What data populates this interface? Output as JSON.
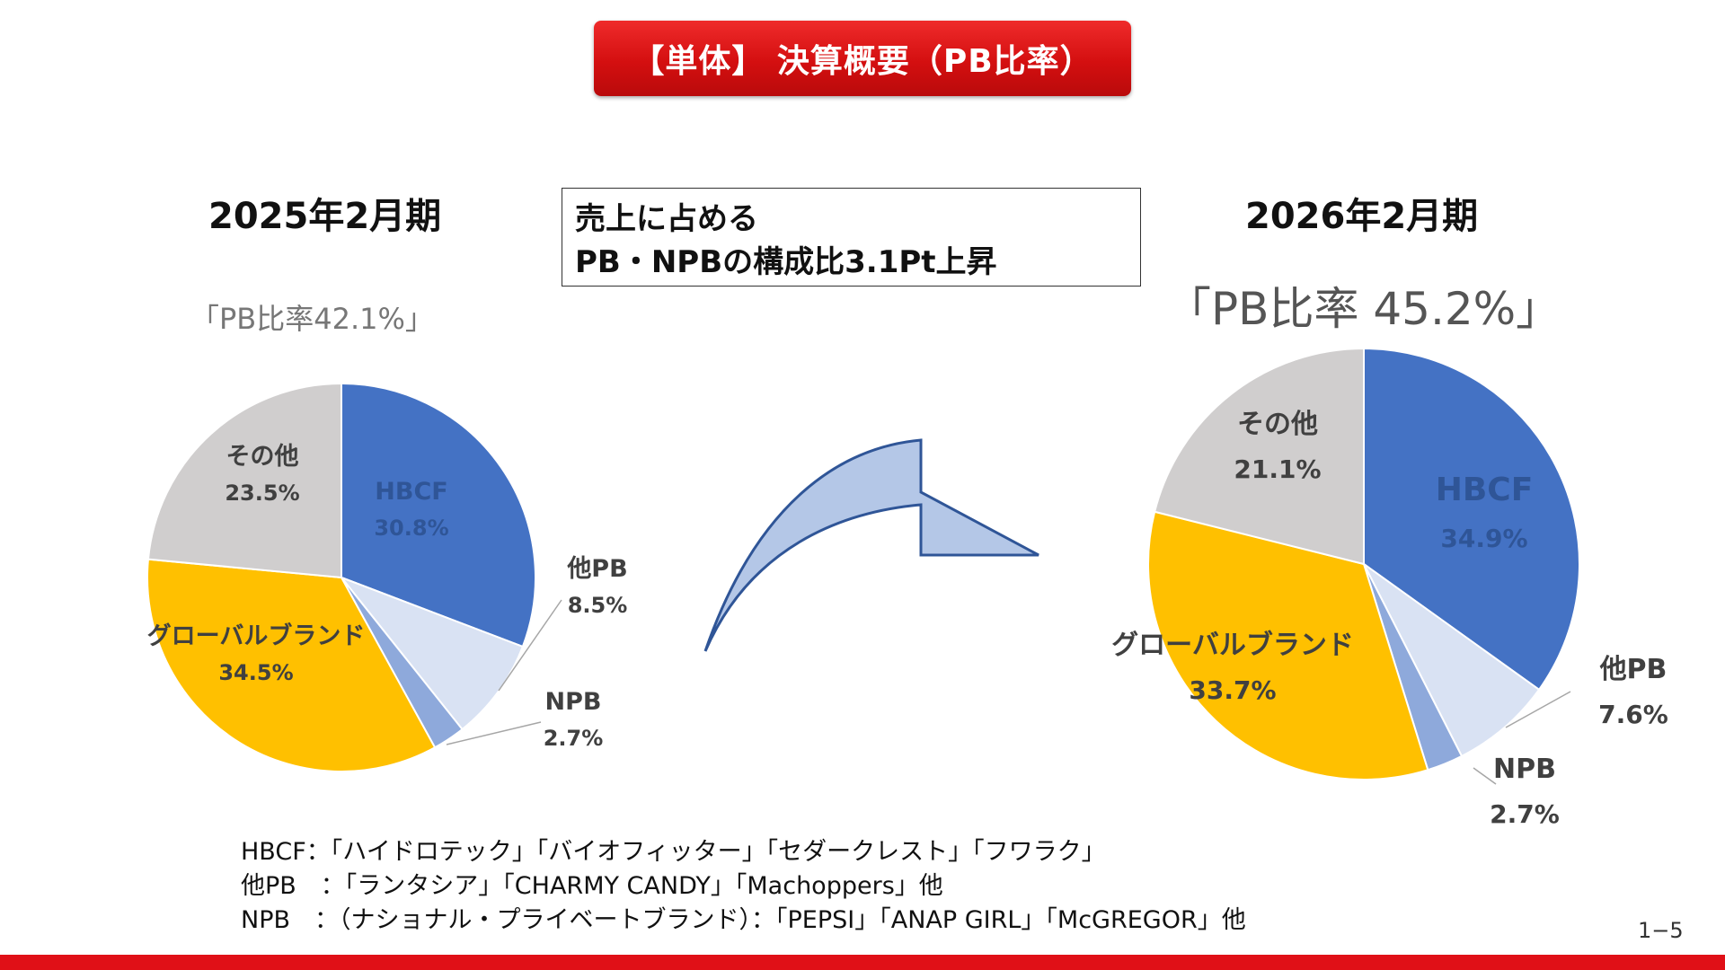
{
  "header": {
    "title": "【単体】 決算概要（PB比率）"
  },
  "note": {
    "line1": "売上に占める",
    "line2": "PB・NPBの構成比3.1Pt上昇"
  },
  "colors": {
    "hbcf": "#4472C4",
    "other_pb": "#D9E2F3",
    "npb": "#8EA9DB",
    "global": "#FFC000",
    "others": "#D0CECE",
    "arrow_fill": "#B4C7E7",
    "arrow_stroke": "#2F5597"
  },
  "chart_data": [
    {
      "type": "pie",
      "title": "2025年2月期",
      "subtitle": "「PB比率42.1%」",
      "slices": [
        {
          "name": "HBCF",
          "value": 30.8,
          "label": "30.8%"
        },
        {
          "name": "他PB",
          "value": 8.5,
          "label": "8.5%"
        },
        {
          "name": "NPB",
          "value": 2.7,
          "label": "2.7%"
        },
        {
          "name": "グローバルブランド",
          "value": 34.5,
          "label": "34.5%"
        },
        {
          "name": "その他",
          "value": 23.5,
          "label": "23.5%"
        }
      ]
    },
    {
      "type": "pie",
      "title": "2026年2月期",
      "subtitle": "「PB比率 45.2%」",
      "slices": [
        {
          "name": "HBCF",
          "value": 34.9,
          "label": "34.9%"
        },
        {
          "name": "他PB",
          "value": 7.6,
          "label": "7.6%"
        },
        {
          "name": "NPB",
          "value": 2.7,
          "label": "2.7%"
        },
        {
          "name": "グローバルブランド",
          "value": 33.7,
          "label": "33.7%"
        },
        {
          "name": "その他",
          "value": 21.1,
          "label": "21.1%"
        }
      ]
    }
  ],
  "footnotes": [
    "HBCF：「ハイドロテック」「バイオフィッター」「セダークレスト」「フワラク」",
    "他PB　：「ランタシア」「CHARMY CANDY」「Machoppers」他",
    "NPB　：（ナショナル・プライベートブランド）：「PEPSI」「ANAP GIRL」「McGREGOR」他"
  ],
  "page_number": "1−5"
}
